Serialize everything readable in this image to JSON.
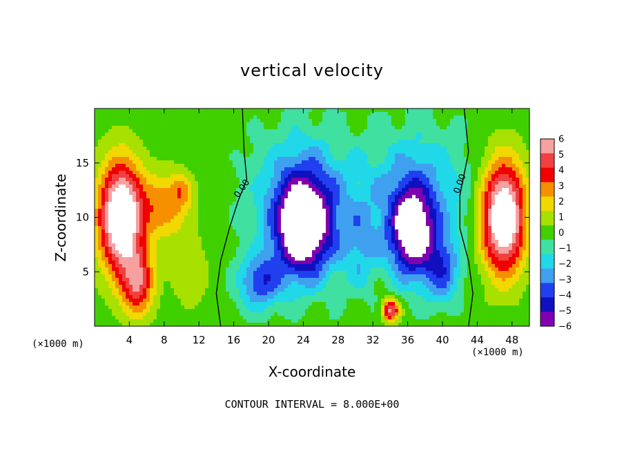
{
  "chart_data": {
    "type": "heatmap",
    "title": "vertical velocity",
    "xlabel": "X-coordinate",
    "ylabel": "Z-coordinate",
    "x_unit": "(×1000 m)",
    "footnote": "CONTOUR INTERVAL = 8.000E+00",
    "xlim": [
      0,
      50
    ],
    "ylim": [
      0,
      20
    ],
    "x_ticks": [
      4,
      8,
      12,
      16,
      20,
      24,
      28,
      32,
      36,
      40,
      44,
      48
    ],
    "y_ticks": [
      5,
      10,
      15
    ],
    "colorbar": {
      "levels": [
        6,
        5,
        4,
        3,
        2,
        1,
        0,
        -1,
        -2,
        -3,
        -4,
        -5,
        -6
      ],
      "labels": [
        "6",
        "5",
        "4",
        "3",
        "2",
        "1",
        "0",
        "−1",
        "−2",
        "−3",
        "−4",
        "−5",
        "−6"
      ],
      "colors": [
        "#f7a0a0",
        "#f04040",
        "#f20000",
        "#f79000",
        "#f0d800",
        "#a8e000",
        "#40d000",
        "#40e0a0",
        "#20d8e8",
        "#40a0f0",
        "#2040f0",
        "#1010c0",
        "#8000b0"
      ]
    },
    "contour_labels": [
      "0.00",
      "0.00"
    ],
    "features": [
      {
        "kind": "updraft",
        "x": 3,
        "y": 10,
        "sx": 2.5,
        "sy": 5,
        "value": 9
      },
      {
        "kind": "updraft",
        "x": 8,
        "y": 11,
        "sx": 3,
        "sy": 3,
        "value": 3
      },
      {
        "kind": "updraft",
        "x": 10,
        "y": 12.5,
        "sx": 1.2,
        "sy": 1.5,
        "value": 2
      },
      {
        "kind": "updraft",
        "x": 5,
        "y": 4,
        "sx": 1.8,
        "sy": 3,
        "value": 5
      },
      {
        "kind": "updraft",
        "x": 47,
        "y": 10,
        "sx": 2.5,
        "sy": 5,
        "value": 9
      },
      {
        "kind": "updraft",
        "x": 34,
        "y": 1.5,
        "sx": 1,
        "sy": 1,
        "value": 6
      },
      {
        "kind": "updraft",
        "x": 11,
        "y": 5,
        "sx": 2,
        "sy": 3,
        "value": 1.5
      },
      {
        "kind": "downdraft",
        "x": 24,
        "y": 9,
        "sx": 3.2,
        "sy": 4.5,
        "value": -8
      },
      {
        "kind": "downdraft",
        "x": 36.5,
        "y": 8.5,
        "sx": 2.5,
        "sy": 4,
        "value": -7
      },
      {
        "kind": "downdraft",
        "x": 24,
        "y": 12,
        "sx": 6,
        "sy": 6,
        "value": -3
      },
      {
        "kind": "downdraft",
        "x": 37,
        "y": 12,
        "sx": 6,
        "sy": 6,
        "value": -3
      },
      {
        "kind": "downdraft",
        "x": 30.5,
        "y": 7,
        "sx": 2,
        "sy": 4,
        "value": -2
      },
      {
        "kind": "downdraft",
        "x": 19,
        "y": 4,
        "sx": 2.5,
        "sy": 2.5,
        "value": -4
      },
      {
        "kind": "downdraft",
        "x": 40,
        "y": 5,
        "sx": 2,
        "sy": 3,
        "value": -3.5
      }
    ]
  }
}
